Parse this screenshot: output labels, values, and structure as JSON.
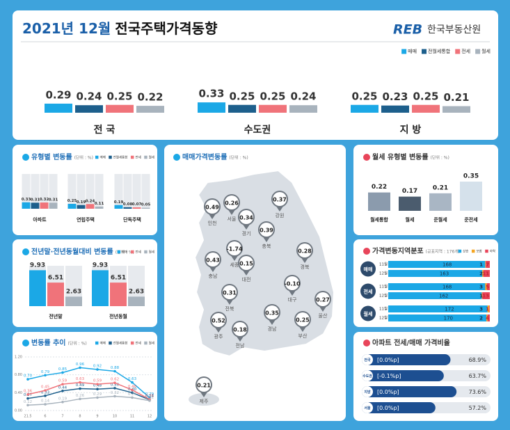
{
  "header": {
    "title_date": "2021년 12월",
    "title": "전국주택가격동향",
    "logo_mark": "REB",
    "logo": "한국부동산원"
  },
  "chart_data": [
    {
      "type": "bar",
      "categories": [
        "전 국",
        "수도권",
        "지 방"
      ],
      "series": [
        {
          "name": "매매",
          "color": "#1ba8e6",
          "values": [
            0.29,
            0.33,
            0.25
          ]
        },
        {
          "name": "전월세통합",
          "color": "#1d5f8c",
          "values": [
            0.24,
            0.25,
            0.23
          ]
        },
        {
          "name": "전세",
          "color": "#f0737a",
          "values": [
            0.25,
            0.25,
            0.25
          ]
        },
        {
          "name": "월세",
          "color": "#a8b3bd",
          "values": [
            0.22,
            0.24,
            0.21
          ]
        }
      ],
      "legend": "top-right"
    },
    {
      "type": "bar",
      "title": "유형별 변동률",
      "subtitle": "(단위 : %)",
      "categories": [
        "아파트",
        "연립주택",
        "단독주택"
      ],
      "series": [
        {
          "name": "매매",
          "color": "#1ba8e6",
          "values": [
            0.33,
            0.25,
            0.19
          ]
        },
        {
          "name": "전월세통합",
          "color": "#1d5f8c",
          "values": [
            0.31,
            0.19,
            0.08
          ]
        },
        {
          "name": "전세",
          "color": "#f0737a",
          "values": [
            0.32,
            0.24,
            0.07
          ]
        },
        {
          "name": "월세",
          "color": "#a8b3bd",
          "values": [
            0.31,
            0.11,
            0.05
          ]
        }
      ],
      "legend": "top-right"
    },
    {
      "type": "bar",
      "title": "전년말·전년동월대비 변동률",
      "subtitle": "(단위 : %)",
      "categories": [
        "전년말",
        "전년동월"
      ],
      "series": [
        {
          "name": "매매",
          "color": "#1ba8e6",
          "values": [
            9.93,
            9.93
          ]
        },
        {
          "name": "전세",
          "color": "#f0737a",
          "values": [
            6.51,
            6.51
          ]
        },
        {
          "name": "월세",
          "color": "#a8b3bd",
          "values": [
            2.63,
            2.63
          ]
        }
      ],
      "legend": "top-right"
    },
    {
      "type": "line",
      "title": "변동률 추이",
      "subtitle": "(단위 : %)",
      "categories": [
        "21.5",
        "6",
        "7",
        "8",
        "9",
        "10",
        "11",
        "12"
      ],
      "series": [
        {
          "name": "매매",
          "color": "#1ba8e6",
          "values": [
            0.7,
            0.79,
            0.85,
            0.96,
            0.92,
            0.88,
            0.63,
            0.29
          ],
          "value_labels": [
            "0.70",
            "0.79",
            "0.85",
            "0.96",
            "0.92",
            "0.88",
            "0.63",
            "0.29"
          ]
        },
        {
          "name": "전월세통합",
          "color": "#1d5f8c",
          "values": [
            0.27,
            0.33,
            0.44,
            0.49,
            0.48,
            0.5,
            0.4,
            0.24
          ],
          "value_labels": [
            "0.27",
            "0.33",
            "0.44",
            "0.49",
            "0.48",
            "0.50",
            "0.40",
            "0.24"
          ]
        },
        {
          "name": "전세",
          "color": "#f0737a",
          "values": [
            0.36,
            0.45,
            0.59,
            0.63,
            0.59,
            0.62,
            0.46,
            0.25
          ],
          "value_labels": [
            "0.36",
            "0.45",
            "0.59",
            "0.63",
            "0.59",
            "0.62",
            "0.46",
            "0.25"
          ]
        },
        {
          "name": "월세",
          "color": "#a8b3bd",
          "values": [
            0.12,
            0.14,
            0.19,
            0.26,
            0.29,
            0.32,
            0.29,
            0.22
          ],
          "value_labels": [
            "0.12",
            "0.14",
            "0.19",
            "0.26",
            "0.29",
            "0.32",
            "0.29",
            "0.22"
          ]
        }
      ],
      "ylim": [
        0,
        1.2
      ],
      "yticks": [
        {
          "value": 0,
          "label": "0.00"
        },
        {
          "value": 0.4,
          "label": "0.40"
        },
        {
          "value": 0.8,
          "label": "0.80"
        },
        {
          "value": 1.2,
          "label": "1.20"
        }
      ],
      "grid": true,
      "legend": "top-right"
    },
    {
      "type": "map",
      "title": "매매가격변동률",
      "subtitle": "(단위 : %)",
      "regions": [
        {
          "name": "인천",
          "value": 0.49
        },
        {
          "name": "서울",
          "value": 0.26
        },
        {
          "name": "경기",
          "value": 0.34
        },
        {
          "name": "강원",
          "value": 0.37
        },
        {
          "name": "충북",
          "value": 0.39
        },
        {
          "name": "세종",
          "value": -1.74
        },
        {
          "name": "대전",
          "value": 0.15
        },
        {
          "name": "충남",
          "value": 0.43
        },
        {
          "name": "경북",
          "value": 0.28
        },
        {
          "name": "전북",
          "value": 0.31
        },
        {
          "name": "대구",
          "value": -0.1,
          "value_label": "-0.10"
        },
        {
          "name": "울산",
          "value": 0.27
        },
        {
          "name": "경남",
          "value": 0.35
        },
        {
          "name": "부산",
          "value": 0.25
        },
        {
          "name": "광주",
          "value": 0.52
        },
        {
          "name": "전남",
          "value": 0.18
        },
        {
          "name": "제주",
          "value": 0.21
        }
      ]
    },
    {
      "type": "bar",
      "title": "월세 유형별 변동률",
      "subtitle": "(단위 : %)",
      "categories": [
        "월세통합",
        "월세",
        "준월세",
        "준전세"
      ],
      "values": [
        0.22,
        0.17,
        0.21,
        0.35
      ],
      "colors": [
        "#8b9bad",
        "#4b5c6e",
        "#a9b6c4",
        "#d5e1eb"
      ]
    },
    {
      "type": "stacked-bar-h",
      "title": "가격변동지역분포",
      "subtitle": "(공표지역 : 176개)",
      "groups": [
        "매매",
        "전세",
        "월세"
      ],
      "categories": [
        "11월",
        "12월",
        "11월",
        "12월",
        "11월",
        "12월"
      ],
      "series": [
        {
          "name": "상승",
          "color": "#1ba8e6",
          "values": [
            168,
            163,
            168,
            162,
            172,
            170
          ]
        },
        {
          "name": "보합",
          "color": "#f5a623",
          "values": [
            1,
            2,
            3,
            1,
            3,
            2
          ]
        },
        {
          "name": "하락",
          "color": "#e8455a",
          "values": [
            7,
            11,
            5,
            13,
            1,
            4
          ]
        }
      ],
      "xlim": [
        0,
        176
      ],
      "legend": "top-right"
    },
    {
      "type": "ratio-bar",
      "title": "아파트 전세/매매 가격비율",
      "categories": [
        "전국",
        "수도권",
        "지방",
        "서울"
      ],
      "changes": [
        "[0.0%p]",
        "[-0.1%p]",
        "[0.0%p]",
        "[0.0%p]"
      ],
      "values": [
        68.9,
        63.7,
        73.6,
        57.2
      ],
      "value_labels": [
        "68.9%",
        "63.7%",
        "73.6%",
        "57.2%"
      ],
      "xlim": [
        0,
        100
      ]
    }
  ]
}
